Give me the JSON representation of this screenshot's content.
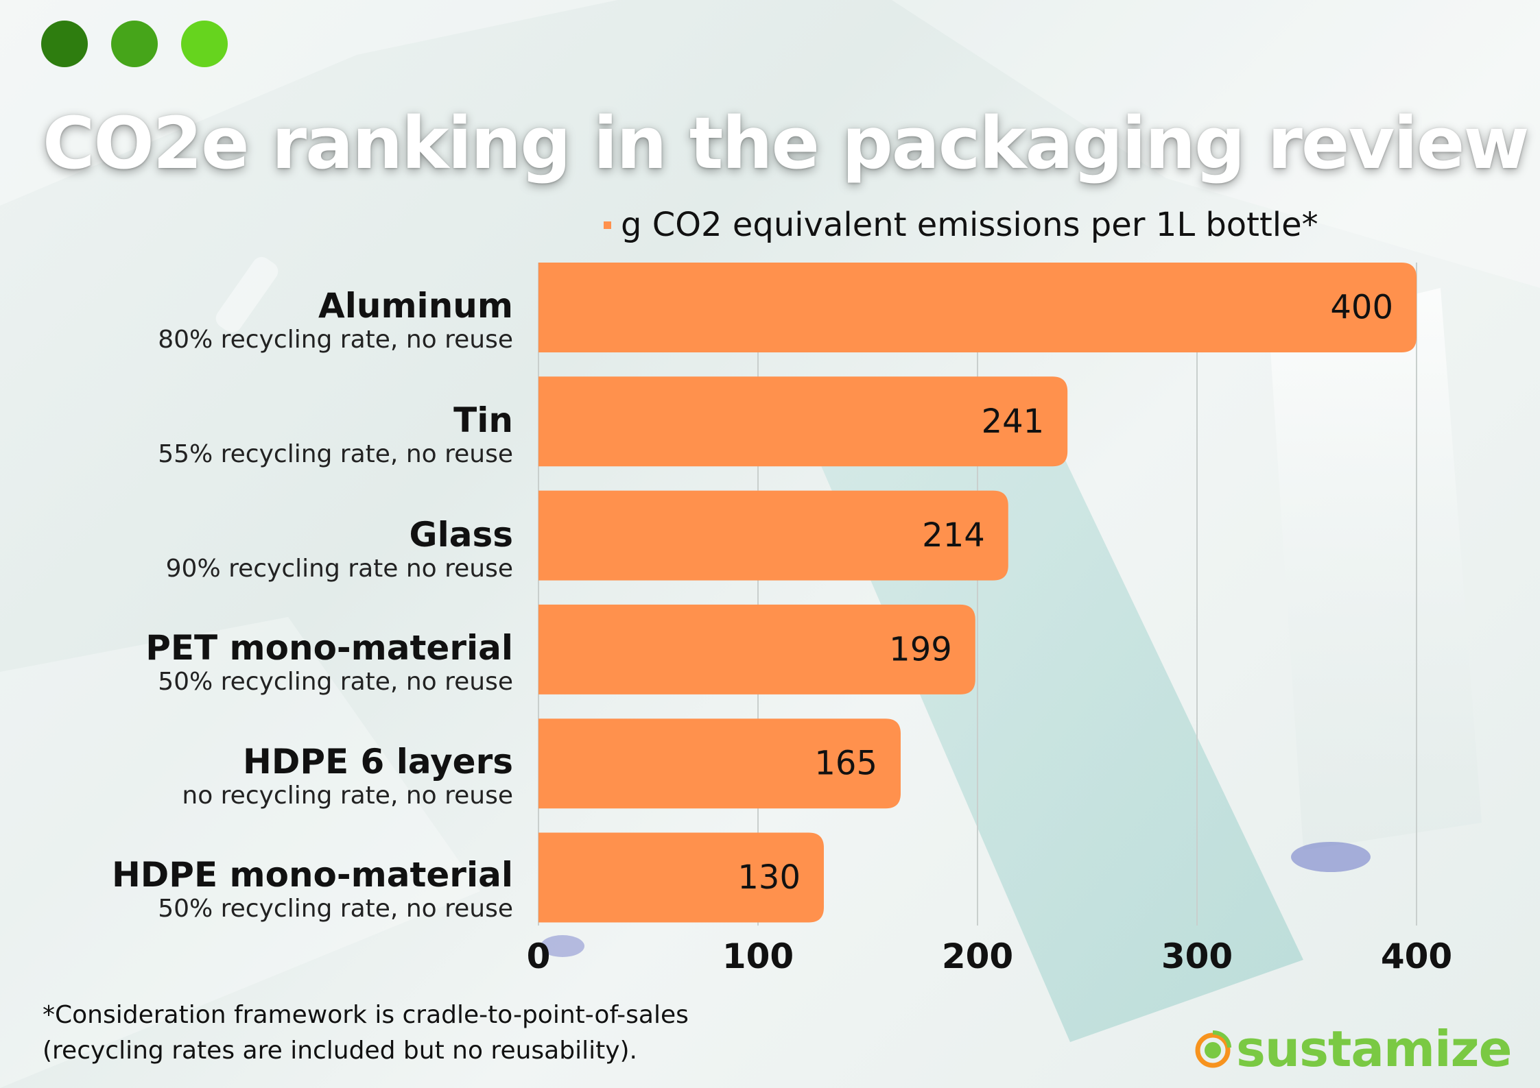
{
  "title": "CO2e ranking in the packaging review",
  "header_dots": [
    "#2e7d0f",
    "#46a51a",
    "#66d41e"
  ],
  "colors": {
    "bar": "#ff914d",
    "grid": "#c9cfcd",
    "text": "#111111",
    "brand_green": "#7ac943",
    "brand_orange": "#f7931e"
  },
  "categories": [
    {
      "name": "Aluminum",
      "note": "80% recycling rate, no reuse"
    },
    {
      "name": "Tin",
      "note": "55% recycling rate, no reuse"
    },
    {
      "name": "Glass",
      "note": "90% recycling rate no reuse"
    },
    {
      "name": "PET mono-material",
      "note": "50% recycling rate, no reuse"
    },
    {
      "name": "HDPE 6 layers",
      "note": "no recycling rate, no reuse"
    },
    {
      "name": "HDPE mono-material",
      "note": "50% recycling rate, no reuse"
    }
  ],
  "chart_data": {
    "type": "bar",
    "orientation": "horizontal",
    "categories": [
      "Aluminum",
      "Tin",
      "Glass",
      "PET mono-material",
      "HDPE 6 layers",
      "HDPE mono-material"
    ],
    "series": [
      {
        "name": "g CO2 equivalent emissions per 1L bottle*",
        "values": [
          400,
          241,
          214,
          199,
          165,
          130
        ]
      }
    ],
    "title": "CO2e ranking in the packaging review",
    "xlabel": "",
    "ylabel": "",
    "xlim": [
      0,
      400
    ],
    "x_ticks": [
      "0",
      "100",
      "200",
      "300",
      "400"
    ],
    "grid": "vertical",
    "legend_position": "top",
    "data_labels": [
      "400",
      "241",
      "214",
      "199",
      "165",
      "130"
    ]
  },
  "footnote": {
    "line1": "*Consideration framework is cradle-to-point-of-sales",
    "line2": "(recycling rates are included but no reusability)."
  },
  "brand": {
    "name": "sustamize",
    "icon": "leaf-globe-icon"
  }
}
